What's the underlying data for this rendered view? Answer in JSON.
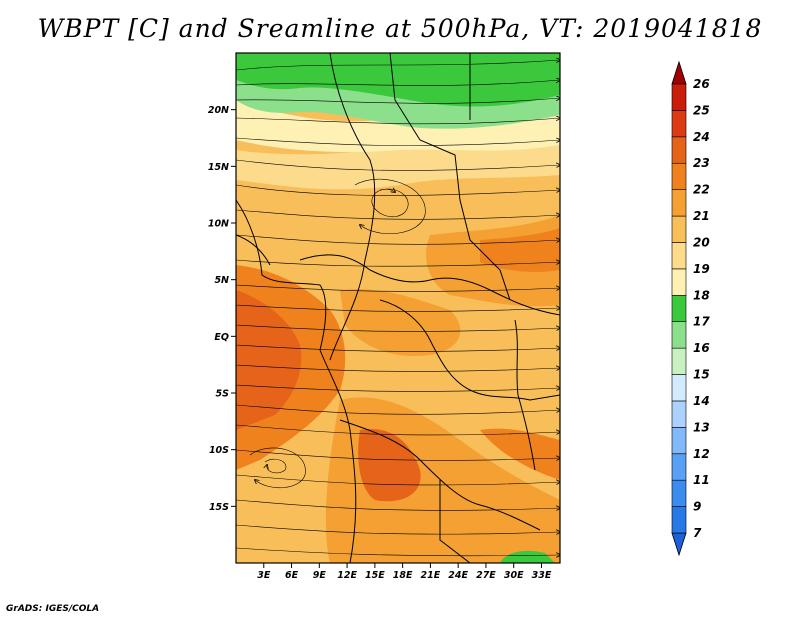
{
  "title": "WBPT [C] and Sreamline at 500hPa, VT: 2019041818",
  "credit": "GrADS: IGES/COLA",
  "map": {
    "lon_range": [
      0,
      35
    ],
    "lat_range": [
      -20,
      25
    ],
    "lat_labels": [
      {
        "lat": 20,
        "text": "20N"
      },
      {
        "lat": 15,
        "text": "15N"
      },
      {
        "lat": 10,
        "text": "10N"
      },
      {
        "lat": 5,
        "text": "5N"
      },
      {
        "lat": 0,
        "text": "EQ"
      },
      {
        "lat": -5,
        "text": "5S"
      },
      {
        "lat": -10,
        "text": "10S"
      },
      {
        "lat": -15,
        "text": "15S"
      }
    ],
    "lon_labels": [
      {
        "lon": 3,
        "text": "3E"
      },
      {
        "lon": 6,
        "text": "6E"
      },
      {
        "lon": 9,
        "text": "9E"
      },
      {
        "lon": 12,
        "text": "12E"
      },
      {
        "lon": 15,
        "text": "15E"
      },
      {
        "lon": 18,
        "text": "18E"
      },
      {
        "lon": 21,
        "text": "21E"
      },
      {
        "lon": 24,
        "text": "24E"
      },
      {
        "lon": 27,
        "text": "27E"
      },
      {
        "lon": 30,
        "text": "30E"
      },
      {
        "lon": 33,
        "text": "33E"
      }
    ]
  },
  "colorbar": {
    "levels": [
      "7",
      "9",
      "11",
      "12",
      "13",
      "14",
      "15",
      "16",
      "17",
      "18",
      "19",
      "20",
      "21",
      "22",
      "23",
      "24",
      "25",
      "26"
    ],
    "colors": [
      "#1e5fdc",
      "#2878e6",
      "#3c8cf0",
      "#5aa0f5",
      "#82b9fa",
      "#aad2fc",
      "#d2ebff",
      "#c8f0c0",
      "#8ce08c",
      "#3cc83c",
      "#fff0b4",
      "#fcdc8c",
      "#f8be5a",
      "#f4a032",
      "#f0821e",
      "#e6641a",
      "#dc3c14",
      "#c81e0a",
      "#a00000"
    ]
  }
}
